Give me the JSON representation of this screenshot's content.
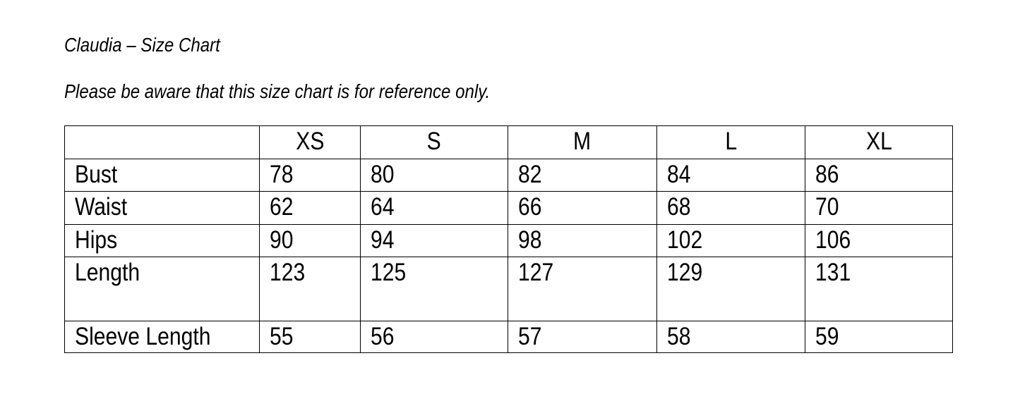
{
  "title": "Claudia – Size Chart",
  "note": "Please be aware that this size chart is for reference only.",
  "table": {
    "columns": [
      "",
      "XS",
      "S",
      "M",
      "L",
      "XL"
    ],
    "rows": [
      {
        "label": "Bust",
        "values": [
          "78",
          "80",
          "82",
          "84",
          "86"
        ]
      },
      {
        "label": "Waist",
        "values": [
          "62",
          "64",
          "66",
          "68",
          "70"
        ]
      },
      {
        "label": "Hips",
        "values": [
          "90",
          "94",
          "98",
          "102",
          "106"
        ]
      },
      {
        "label": "Length",
        "values": [
          "123",
          "125",
          "127",
          "129",
          "131"
        ]
      },
      {
        "label": "Sleeve Length",
        "values": [
          "55",
          "56",
          "57",
          "58",
          "59"
        ]
      }
    ]
  }
}
